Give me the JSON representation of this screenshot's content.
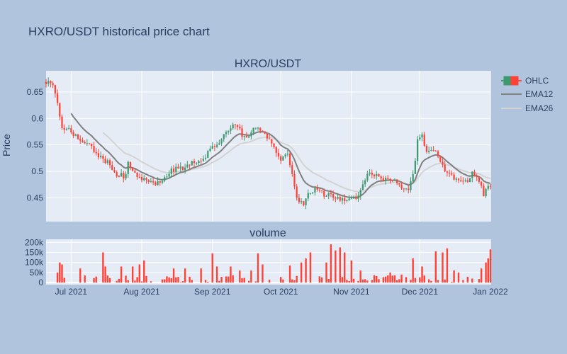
{
  "chart_data": {
    "type": "candlestick",
    "title": "HXRO/USDT historical price chart",
    "subtitles": {
      "price": "HXRO/USDT",
      "volume": "volume"
    },
    "ylabel": "Price",
    "x_range": [
      "2021-06-20",
      "2022-01-01"
    ],
    "price_ylim": [
      0.405,
      0.69
    ],
    "volume_ylim": [
      -10000,
      215000
    ],
    "x_ticks": [
      {
        "date": "2021-07-01",
        "label": "Jul 2021"
      },
      {
        "date": "2021-08-01",
        "label": "Aug 2021"
      },
      {
        "date": "2021-09-01",
        "label": "Sep 2021"
      },
      {
        "date": "2021-10-01",
        "label": "Oct 2021"
      },
      {
        "date": "2021-11-01",
        "label": "Nov 2021"
      },
      {
        "date": "2021-12-01",
        "label": "Dec 2021"
      },
      {
        "date": "2022-01-01",
        "label": "Jan 2022"
      }
    ],
    "price_ticks": [
      {
        "value": 0.45,
        "label": "0.45"
      },
      {
        "value": 0.5,
        "label": "0.5"
      },
      {
        "value": 0.55,
        "label": "0.55"
      },
      {
        "value": 0.6,
        "label": "0.6"
      },
      {
        "value": 0.65,
        "label": "0.65"
      }
    ],
    "volume_ticks": [
      {
        "value": 0,
        "label": "0"
      },
      {
        "value": 50000,
        "label": "50k"
      },
      {
        "value": 100000,
        "label": "100k"
      },
      {
        "value": 150000,
        "label": "150k"
      },
      {
        "value": 200000,
        "label": "200k"
      }
    ],
    "legend": {
      "placement": "top-right",
      "items": [
        "OHLC",
        "EMA12",
        "EMA26"
      ]
    },
    "grid": true,
    "colors": {
      "increasing": "#3d9970",
      "decreasing": "#ff4136",
      "ema12": "#808080",
      "ema26": "#d3d3d3",
      "volume": "#ff4136",
      "paper": "#b0c4de",
      "plot": "#e5ecf6"
    },
    "close_keypoints": [
      [
        "2021-06-20",
        0.67
      ],
      [
        "2021-06-23",
        0.66
      ],
      [
        "2021-06-25",
        0.63
      ],
      [
        "2021-06-27",
        0.585
      ],
      [
        "2021-07-01",
        0.575
      ],
      [
        "2021-07-05",
        0.555
      ],
      [
        "2021-07-08",
        0.553
      ],
      [
        "2021-07-12",
        0.535
      ],
      [
        "2021-07-16",
        0.52
      ],
      [
        "2021-07-18",
        0.512
      ],
      [
        "2021-07-21",
        0.495
      ],
      [
        "2021-07-25",
        0.49
      ],
      [
        "2021-07-26",
        0.515
      ],
      [
        "2021-07-28",
        0.5
      ],
      [
        "2021-08-01",
        0.485
      ],
      [
        "2021-08-05",
        0.478
      ],
      [
        "2021-08-10",
        0.48
      ],
      [
        "2021-08-13",
        0.5
      ],
      [
        "2021-08-16",
        0.505
      ],
      [
        "2021-08-20",
        0.508
      ],
      [
        "2021-08-24",
        0.52
      ],
      [
        "2021-08-26",
        0.52
      ],
      [
        "2021-08-29",
        0.53
      ],
      [
        "2021-09-02",
        0.55
      ],
      [
        "2021-09-05",
        0.56
      ],
      [
        "2021-09-08",
        0.58
      ],
      [
        "2021-09-11",
        0.59
      ],
      [
        "2021-09-14",
        0.57
      ],
      [
        "2021-09-17",
        0.565
      ],
      [
        "2021-09-20",
        0.585
      ],
      [
        "2021-09-22",
        0.575
      ],
      [
        "2021-09-25",
        0.565
      ],
      [
        "2021-09-27",
        0.55
      ],
      [
        "2021-09-30",
        0.525
      ],
      [
        "2021-10-02",
        0.525
      ],
      [
        "2021-10-04",
        0.53
      ],
      [
        "2021-10-06",
        0.49
      ],
      [
        "2021-10-08",
        0.45
      ],
      [
        "2021-10-11",
        0.44
      ],
      [
        "2021-10-13",
        0.455
      ],
      [
        "2021-10-15",
        0.465
      ],
      [
        "2021-10-18",
        0.46
      ],
      [
        "2021-10-21",
        0.455
      ],
      [
        "2021-10-24",
        0.455
      ],
      [
        "2021-10-28",
        0.445
      ],
      [
        "2021-11-01",
        0.445
      ],
      [
        "2021-11-04",
        0.455
      ],
      [
        "2021-11-06",
        0.48
      ],
      [
        "2021-11-08",
        0.495
      ],
      [
        "2021-11-12",
        0.49
      ],
      [
        "2021-11-16",
        0.485
      ],
      [
        "2021-11-20",
        0.48
      ],
      [
        "2021-11-23",
        0.47
      ],
      [
        "2021-11-26",
        0.465
      ],
      [
        "2021-11-28",
        0.49
      ],
      [
        "2021-11-30",
        0.56
      ],
      [
        "2021-12-02",
        0.57
      ],
      [
        "2021-12-04",
        0.535
      ],
      [
        "2021-12-07",
        0.54
      ],
      [
        "2021-12-10",
        0.52
      ],
      [
        "2021-12-13",
        0.495
      ],
      [
        "2021-12-17",
        0.485
      ],
      [
        "2021-12-22",
        0.48
      ],
      [
        "2021-12-24",
        0.495
      ],
      [
        "2021-12-27",
        0.485
      ],
      [
        "2021-12-29",
        0.455
      ],
      [
        "2021-12-31",
        0.472
      ],
      [
        "2022-01-01",
        0.472
      ]
    ],
    "volume_keypoints": [
      [
        "2021-06-25",
        50000
      ],
      [
        "2021-06-26",
        100000
      ],
      [
        "2021-06-27",
        90000
      ],
      [
        "2021-07-05",
        70000
      ],
      [
        "2021-07-12",
        30000
      ],
      [
        "2021-07-15",
        150000
      ],
      [
        "2021-07-16",
        80000
      ],
      [
        "2021-07-23",
        80000
      ],
      [
        "2021-07-28",
        80000
      ],
      [
        "2021-07-31",
        90000
      ],
      [
        "2021-08-02",
        110000
      ],
      [
        "2021-08-15",
        70000
      ],
      [
        "2021-08-20",
        70000
      ],
      [
        "2021-08-27",
        70000
      ],
      [
        "2021-09-01",
        145000
      ],
      [
        "2021-09-03",
        80000
      ],
      [
        "2021-09-09",
        80000
      ],
      [
        "2021-09-13",
        60000
      ],
      [
        "2021-09-18",
        60000
      ],
      [
        "2021-09-21",
        145000
      ],
      [
        "2021-09-23",
        90000
      ],
      [
        "2021-10-05",
        85000
      ],
      [
        "2021-10-10",
        100000
      ],
      [
        "2021-10-12",
        120000
      ],
      [
        "2021-10-14",
        150000
      ],
      [
        "2021-10-21",
        100000
      ],
      [
        "2021-10-23",
        190000
      ],
      [
        "2021-10-25",
        160000
      ],
      [
        "2021-10-27",
        175000
      ],
      [
        "2021-10-29",
        150000
      ],
      [
        "2021-11-01",
        110000
      ],
      [
        "2021-11-05",
        60000
      ],
      [
        "2021-11-18",
        50000
      ],
      [
        "2021-11-23",
        40000
      ],
      [
        "2021-11-28",
        120000
      ],
      [
        "2021-12-02",
        80000
      ],
      [
        "2021-12-08",
        155000
      ],
      [
        "2021-12-11",
        150000
      ],
      [
        "2021-12-13",
        170000
      ],
      [
        "2021-12-16",
        60000
      ],
      [
        "2021-12-18",
        50000
      ],
      [
        "2021-12-28",
        70000
      ],
      [
        "2021-12-30",
        100000
      ],
      [
        "2021-12-31",
        120000
      ],
      [
        "2022-01-01",
        165000
      ]
    ]
  }
}
